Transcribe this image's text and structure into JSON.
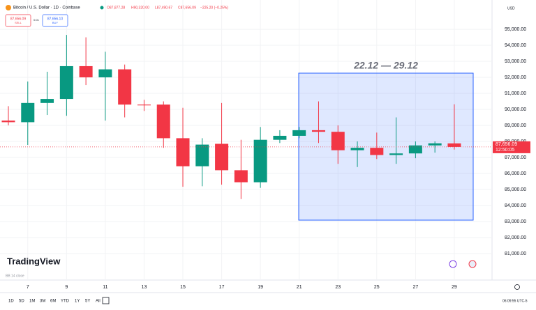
{
  "header": {
    "symbol": "Bitcoin / U.S. Dollar · 1D · Coinbase",
    "open": "O87,877.28",
    "high": "H90,320.00",
    "low": "L87,490.67",
    "close": "C87,656.09",
    "change": "−225.20 (−0.25%)",
    "sell_price": "87,656.09",
    "sell_label": "SELL",
    "spread": "0.01",
    "buy_price": "87,656.10",
    "buy_label": "BUY",
    "currency": "USD"
  },
  "chart_data": {
    "type": "candlestick",
    "categories": [
      null,
      "7",
      null,
      "9",
      null,
      "11",
      null,
      "13",
      null,
      "15",
      null,
      "17",
      null,
      "19",
      null,
      "21",
      null,
      "23",
      null,
      "25",
      null,
      "27",
      null,
      "29"
    ],
    "open": [
      89300,
      89200,
      90400,
      90650,
      92700,
      92000,
      92500,
      90300,
      90300,
      88200,
      86450,
      87850,
      86200,
      85450,
      88100,
      88350,
      88700,
      88600,
      87450,
      87600,
      87150,
      87250,
      87750,
      87877.28
    ],
    "high": [
      90200,
      91740,
      92350,
      94650,
      94500,
      93600,
      92800,
      90600,
      90500,
      90100,
      88200,
      90400,
      88100,
      88900,
      88700,
      88900,
      90500,
      89000,
      88000,
      88550,
      89500,
      88000,
      88000,
      90320
    ],
    "low": [
      89000,
      87780,
      89650,
      89600,
      91520,
      89300,
      89500,
      89900,
      87600,
      85170,
      85200,
      85300,
      84400,
      85100,
      87900,
      88200,
      87900,
      86600,
      86400,
      86900,
      86600,
      86950,
      87300,
      87490.67
    ],
    "close": [
      89200,
      90400,
      90650,
      92700,
      92000,
      92500,
      90300,
      90250,
      88200,
      86450,
      87800,
      86200,
      85450,
      88100,
      88350,
      88700,
      88600,
      87450,
      87600,
      87150,
      87250,
      87750,
      87881.29,
      87656.09
    ],
    "up_color": "#089981",
    "down_color": "#f23645",
    "ylim": [
      79430,
      96830
    ],
    "yticks": [
      {
        "value": 81000,
        "label": "81,000.00"
      },
      {
        "value": 82000,
        "label": "82,000.00"
      },
      {
        "value": 83000,
        "label": "83,000.00"
      },
      {
        "value": 84000,
        "label": "84,000.00"
      },
      {
        "value": 85000,
        "label": "85,000.00"
      },
      {
        "value": 86000,
        "label": "86,000.00"
      },
      {
        "value": 87000,
        "label": "87,000.00"
      },
      {
        "value": 88000,
        "label": "88,000.00"
      },
      {
        "value": 89000,
        "label": "89,000.00"
      },
      {
        "value": 90000,
        "label": "90,000.00"
      },
      {
        "value": 91000,
        "label": "91,000.00"
      },
      {
        "value": 92000,
        "label": "92,000.00"
      },
      {
        "value": 93000,
        "label": "93,000.00"
      },
      {
        "value": 94000,
        "label": "94,000.00"
      },
      {
        "value": 95000,
        "label": "95,000.00"
      }
    ],
    "grid": true,
    "last_price_label": "87,656.09",
    "countdown": "12:50:05",
    "range_annotation": "22.12 — 29.12",
    "indicator": "BB 14 close"
  },
  "footer": {
    "logo": "TradingView",
    "timeframes": [
      "1D",
      "5D",
      "1M",
      "3M",
      "6M",
      "YTD",
      "1Y",
      "5Y",
      "All"
    ],
    "clock": "06:09:55 UTC-5"
  }
}
